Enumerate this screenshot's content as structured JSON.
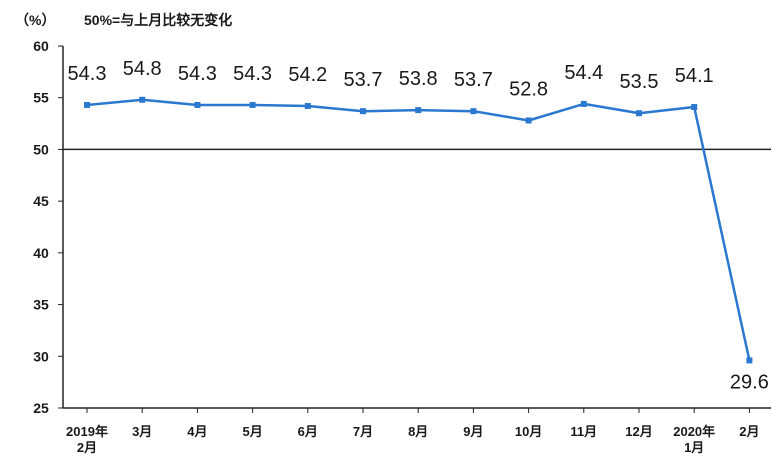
{
  "chart_data": {
    "type": "line",
    "unit_label": "（%）",
    "note": "50%=与上月比较无变化",
    "categories": [
      [
        "2019年",
        "2月"
      ],
      [
        "3月"
      ],
      [
        "4月"
      ],
      [
        "5月"
      ],
      [
        "6月"
      ],
      [
        "7月"
      ],
      [
        "8月"
      ],
      [
        "9月"
      ],
      [
        "10月"
      ],
      [
        "11月"
      ],
      [
        "12月"
      ],
      [
        "2020年",
        "1月"
      ],
      [
        "2月"
      ]
    ],
    "values": [
      54.3,
      54.8,
      54.3,
      54.3,
      54.2,
      53.7,
      53.8,
      53.7,
      52.8,
      54.4,
      53.5,
      54.1,
      29.6
    ],
    "data_labels": [
      "54.3",
      "54.8",
      "54.3",
      "54.3",
      "54.2",
      "53.7",
      "53.8",
      "53.7",
      "52.8",
      "54.4",
      "53.5",
      "54.1",
      "29.6"
    ],
    "yticks": [
      "60",
      "55",
      "50",
      "45",
      "40",
      "35",
      "30",
      "25"
    ],
    "ylim": [
      25,
      60
    ],
    "reference_line": 50,
    "grid": false,
    "line_color": "#2b78d0"
  }
}
